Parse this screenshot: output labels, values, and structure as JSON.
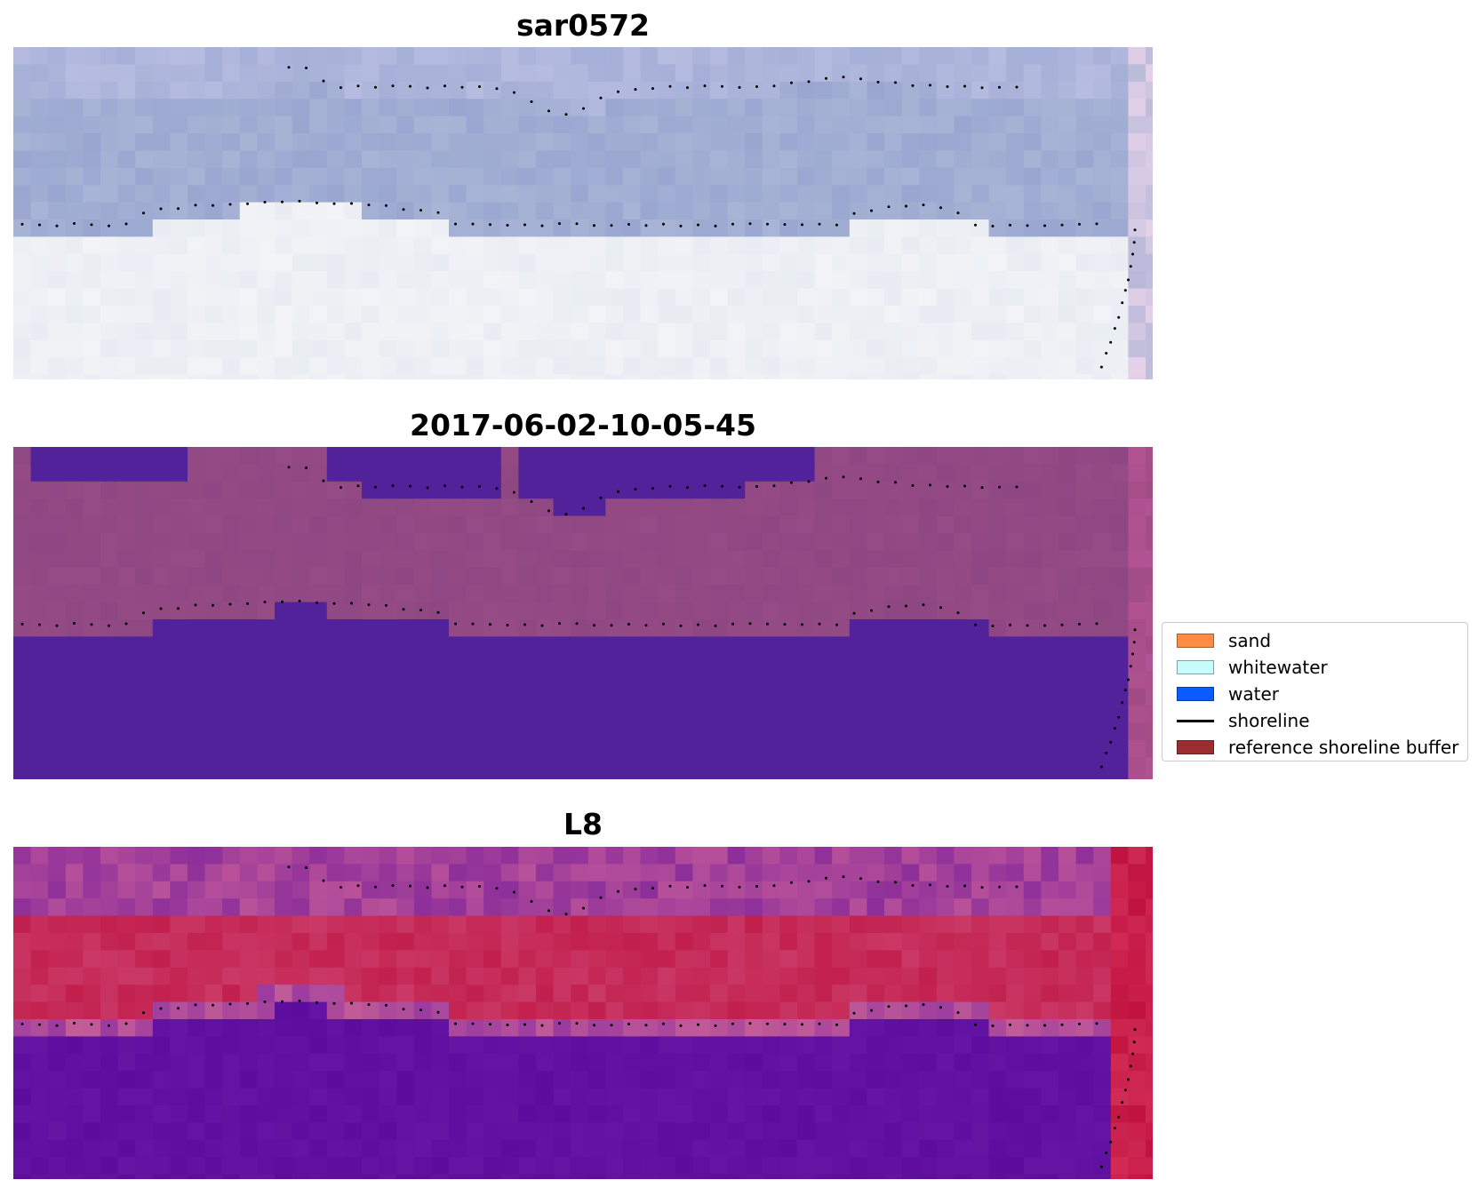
{
  "panels": [
    {
      "title": "sar0572",
      "style": "rgb"
    },
    {
      "title": "2017-06-02-10-05-45",
      "style": "classified"
    },
    {
      "title": "L8",
      "style": "index"
    }
  ],
  "legend": {
    "items": [
      {
        "label": "sand",
        "color": "#ff8c42",
        "kind": "patch"
      },
      {
        "label": "whitewater",
        "color": "#c8fbfb",
        "kind": "patch"
      },
      {
        "label": "water",
        "color": "#0a5cff",
        "kind": "patch"
      },
      {
        "label": "shoreline",
        "color": "#000000",
        "kind": "line"
      },
      {
        "label": "reference shoreline buffer",
        "color": "#9b2d30",
        "kind": "patch"
      }
    ]
  },
  "colors": {
    "rgb_offshore": "#9aa6d0",
    "rgb_surf": "#f2f3f7",
    "classified_land": "#8e4783",
    "classified_water": "#52229a",
    "index_red": "#c21f4d",
    "index_purple": "#5c0d9e",
    "shoreline_points": "#000000"
  }
}
